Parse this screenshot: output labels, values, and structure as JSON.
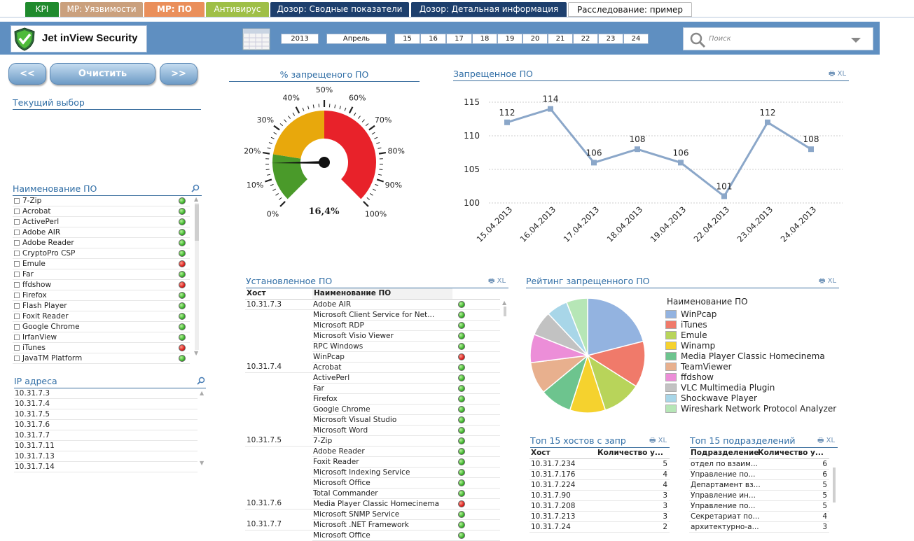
{
  "tabs": [
    {
      "label": "KPI",
      "color": "#1f8a2d"
    },
    {
      "label": "МР: Уязвимости",
      "color": "#caa07d"
    },
    {
      "label": "МР: ПО",
      "color": "#ea8f5b"
    },
    {
      "label": "Антивирус",
      "color": "#9fbf47"
    },
    {
      "label": "Дозор: Сводные показатели",
      "color": "#1d3f6d"
    },
    {
      "label": "Дозор: Детальная информация",
      "color": "#1d3f6d"
    },
    {
      "label": "Расследование: пример",
      "color": "#ffffff"
    }
  ],
  "header": {
    "app_title": "Jet inView Security",
    "year": "2013",
    "month": "Апрель",
    "days": [
      "15",
      "16",
      "17",
      "18",
      "19",
      "20",
      "21",
      "22",
      "23",
      "24"
    ],
    "search_placeholder": "Поиск"
  },
  "nav": {
    "prev": "<<",
    "clear": "Очистить",
    "next": ">>"
  },
  "current_selection": {
    "title": "Текущий выбор"
  },
  "software_list": {
    "title": "Наименование ПО",
    "items": [
      {
        "name": "7-Zip",
        "status": "g"
      },
      {
        "name": "Acrobat",
        "status": "g"
      },
      {
        "name": "ActivePerl",
        "status": "g"
      },
      {
        "name": "Adobe AIR",
        "status": "g"
      },
      {
        "name": "Adobe Reader",
        "status": "g"
      },
      {
        "name": "CryptoPro CSP",
        "status": "g"
      },
      {
        "name": "Emule",
        "status": "r"
      },
      {
        "name": "Far",
        "status": "g"
      },
      {
        "name": "ffdshow",
        "status": "r"
      },
      {
        "name": "Firefox",
        "status": "g"
      },
      {
        "name": "Flash Player",
        "status": "g"
      },
      {
        "name": "Foxit Reader",
        "status": "g"
      },
      {
        "name": "Google Chrome",
        "status": "g"
      },
      {
        "name": "IrfanView",
        "status": "g"
      },
      {
        "name": "iTunes",
        "status": "r"
      },
      {
        "name": "JavaTM Platform",
        "status": "g"
      }
    ]
  },
  "ip_list": {
    "title": "IP адреса",
    "items": [
      "10.31.7.3",
      "10.31.7.4",
      "10.31.7.5",
      "10.31.7.6",
      "10.31.7.7",
      "10.31.7.11",
      "10.31.7.13",
      "10.31.7.14"
    ]
  },
  "gauge": {
    "title": "% запрещеного ПО",
    "value_label": "16,4%",
    "value": 16.4,
    "ticks": [
      "0%",
      "10%",
      "20%",
      "30%",
      "40%",
      "50%",
      "60%",
      "70%",
      "80%",
      "90%",
      "100%"
    ],
    "zones": [
      {
        "from": 0,
        "to": 20,
        "color": "#4a9a2a"
      },
      {
        "from": 20,
        "to": 50,
        "color": "#e8a80c"
      },
      {
        "from": 50,
        "to": 100,
        "color": "#e8222a"
      }
    ]
  },
  "line_panel": {
    "title": "Запрещенное ПО",
    "xl": "XL"
  },
  "chart_data": [
    {
      "type": "line",
      "title": "Запрещенное ПО",
      "categories": [
        "15.04.2013",
        "16.04.2013",
        "17.04.2013",
        "18.04.2013",
        "19.04.2013",
        "22.04.2013",
        "23.04.2013",
        "24.04.2013"
      ],
      "values": [
        112,
        114,
        106,
        108,
        106,
        101,
        112,
        108
      ],
      "ylim": [
        100,
        115
      ],
      "yticks": [
        100,
        105,
        110,
        115
      ],
      "color": "#8ba7c9"
    },
    {
      "type": "pie",
      "title": "Рейтинг  запрещенного ПО",
      "legend_title": "Наименование ПО",
      "categories": [
        "WinPcap",
        "iTunes",
        "Emule",
        "Winamp",
        "Media Player Classic Homecinema",
        "TeamViewer",
        "ffdshow",
        "VLC Multimedia Plugin",
        "Shockwave Player",
        "Wireshark Network Protocol Analyzer"
      ],
      "values": [
        21,
        13,
        11,
        10,
        9,
        9,
        8,
        7,
        6,
        6
      ],
      "colors": [
        "#93b3e0",
        "#f07a6a",
        "#b8d45a",
        "#f5d22e",
        "#6dc48e",
        "#e8b08e",
        "#ec8ed8",
        "#c2c2c2",
        "#a8d6e8",
        "#b6e6b6"
      ]
    }
  ],
  "installed": {
    "title": "Установленное ПО",
    "xl": "XL",
    "col_host": "Хост",
    "col_name": "Наименование ПО",
    "rows": [
      {
        "host": "10.31.7.3",
        "name": "Adobe AIR",
        "status": "g"
      },
      {
        "host": "",
        "name": "Microsoft Client Service for Net...",
        "status": "g"
      },
      {
        "host": "",
        "name": "Microsoft RDP",
        "status": "g"
      },
      {
        "host": "",
        "name": "Microsoft Visio Viewer",
        "status": "g"
      },
      {
        "host": "",
        "name": "RPC  Windows",
        "status": "g"
      },
      {
        "host": "",
        "name": "WinPcap",
        "status": "r"
      },
      {
        "host": "10.31.7.4",
        "name": "Acrobat",
        "status": "g"
      },
      {
        "host": "",
        "name": "ActivePerl",
        "status": "g"
      },
      {
        "host": "",
        "name": "Far",
        "status": "g"
      },
      {
        "host": "",
        "name": "Firefox",
        "status": "g"
      },
      {
        "host": "",
        "name": "Google Chrome",
        "status": "g"
      },
      {
        "host": "",
        "name": "Microsoft Visual Studio",
        "status": "g"
      },
      {
        "host": "",
        "name": "Microsoft Word",
        "status": "g"
      },
      {
        "host": "10.31.7.5",
        "name": "7-Zip",
        "status": "g"
      },
      {
        "host": "",
        "name": "Adobe Reader",
        "status": "g"
      },
      {
        "host": "",
        "name": "Foxit Reader",
        "status": "g"
      },
      {
        "host": "",
        "name": "Microsoft Indexing Service",
        "status": "g"
      },
      {
        "host": "",
        "name": "Microsoft Office",
        "status": "g"
      },
      {
        "host": "",
        "name": "Total Commander",
        "status": "g"
      },
      {
        "host": "10.31.7.6",
        "name": "Media Player Classic Homecinema",
        "status": "r"
      },
      {
        "host": "",
        "name": "Microsoft SNMP Service",
        "status": "g"
      },
      {
        "host": "10.31.7.7",
        "name": "Microsoft .NET Framework",
        "status": "g"
      },
      {
        "host": "",
        "name": "Microsoft Office",
        "status": "g"
      }
    ]
  },
  "top_hosts": {
    "title": "Топ 15 хостов с запр",
    "xl": "XL",
    "col_host": "Хост",
    "col_count": "Количество у...",
    "rows": [
      {
        "host": "10.31.7.234",
        "count": "5"
      },
      {
        "host": "10.31.7.176",
        "count": "4"
      },
      {
        "host": "10.31.7.224",
        "count": "4"
      },
      {
        "host": "10.31.7.90",
        "count": "3"
      },
      {
        "host": "10.31.7.208",
        "count": "3"
      },
      {
        "host": "10.31.7.213",
        "count": "3"
      },
      {
        "host": "10.31.7.24",
        "count": "2"
      }
    ]
  },
  "top_depts": {
    "title": "Топ 15 подразделений",
    "xl": "XL",
    "col_dept": "Подразделение",
    "col_count": "Количество у...",
    "rows": [
      {
        "dept": "отдел по взаим...",
        "count": "6"
      },
      {
        "dept": "Управление по...",
        "count": "6"
      },
      {
        "dept": "Департамент вз...",
        "count": "5"
      },
      {
        "dept": "Управление ин...",
        "count": "5"
      },
      {
        "dept": "Управление по...",
        "count": "5"
      },
      {
        "dept": "Секретариат по...",
        "count": "4"
      },
      {
        "dept": "архитектурно-а...",
        "count": "3"
      }
    ]
  }
}
